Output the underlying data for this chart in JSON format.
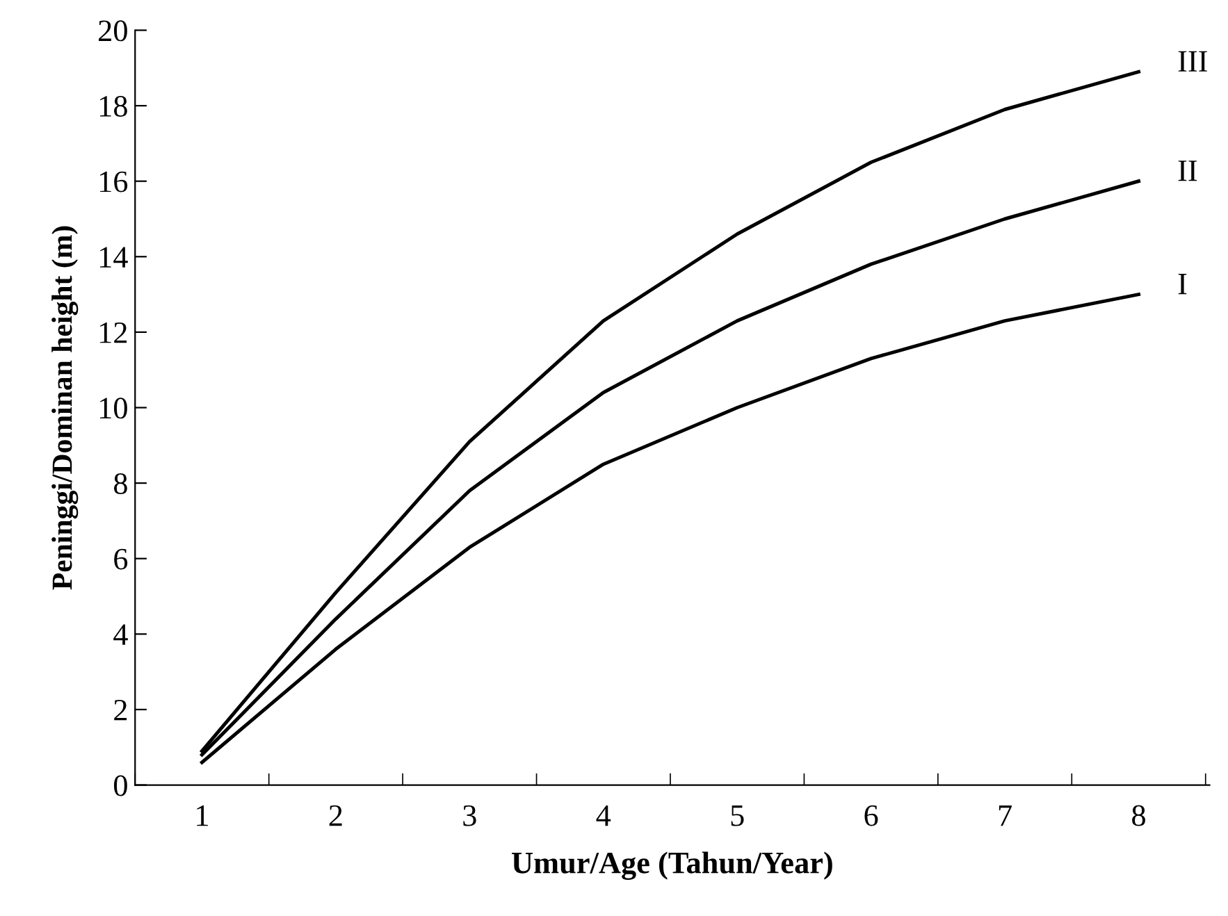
{
  "chart_data": {
    "type": "line",
    "xlabel": "Umur/Age (Tahun/Year)",
    "ylabel": "Peninggi/Dominan height (m)",
    "categories": [
      "1",
      "2",
      "3",
      "4",
      "5",
      "6",
      "7",
      "8"
    ],
    "series": [
      {
        "name": "III",
        "color": "#000000",
        "values": [
          0.9,
          5.1,
          9.1,
          12.3,
          14.6,
          16.5,
          17.9,
          18.9
        ]
      },
      {
        "name": "II",
        "color": "#000000",
        "values": [
          0.8,
          4.4,
          7.8,
          10.4,
          12.3,
          13.8,
          15.0,
          16.0
        ]
      },
      {
        "name": "I",
        "color": "#000000",
        "values": [
          0.6,
          3.6,
          6.3,
          8.5,
          10.0,
          11.3,
          12.3,
          13.0
        ]
      }
    ],
    "ylim": [
      0,
      20
    ],
    "yticks": [
      0,
      2,
      4,
      6,
      8,
      10,
      12,
      14,
      16,
      18,
      20
    ],
    "grid": false,
    "legend": false,
    "marker": "none",
    "line_style": "solid"
  }
}
